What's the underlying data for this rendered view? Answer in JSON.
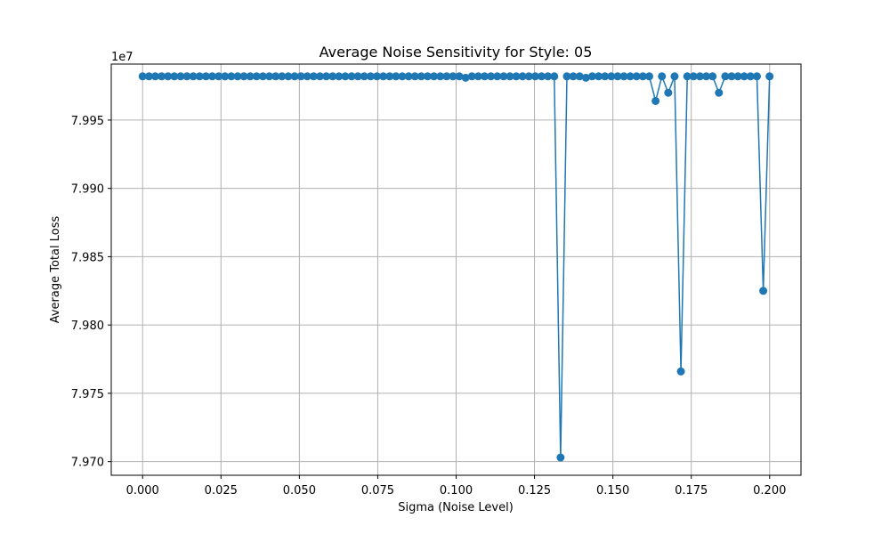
{
  "chart_data": {
    "type": "line",
    "title": "Average Noise Sensitivity for Style: 05",
    "xlabel": "Sigma (Noise Level)",
    "ylabel": "Average Total Loss",
    "y_offset_label": "1e7",
    "y_scale": 10000000,
    "xlim": [
      -0.01,
      0.21
    ],
    "ylim": [
      7.969,
      7.9991
    ],
    "x_ticks": [
      0.0,
      0.025,
      0.05,
      0.075,
      0.1,
      0.125,
      0.15,
      0.175,
      0.2
    ],
    "x_tick_labels": [
      "0.000",
      "0.025",
      "0.050",
      "0.075",
      "0.100",
      "0.125",
      "0.150",
      "0.175",
      "0.200"
    ],
    "y_ticks": [
      7.97,
      7.975,
      7.98,
      7.985,
      7.99,
      7.995
    ],
    "y_tick_labels": [
      "7.970",
      "7.975",
      "7.980",
      "7.985",
      "7.990",
      "7.995"
    ],
    "grid": true,
    "color": "#1f77b4",
    "x_start": 0.0,
    "x_step": 0.00202,
    "values": [
      7.9982,
      7.9982,
      7.9982,
      7.9982,
      7.9982,
      7.9982,
      7.9982,
      7.9982,
      7.9982,
      7.9982,
      7.9982,
      7.9982,
      7.9982,
      7.9982,
      7.9982,
      7.9982,
      7.9982,
      7.9982,
      7.9982,
      7.9982,
      7.9982,
      7.9982,
      7.9982,
      7.9982,
      7.9982,
      7.9982,
      7.9982,
      7.9982,
      7.9982,
      7.9982,
      7.9982,
      7.9982,
      7.9982,
      7.9982,
      7.9982,
      7.9982,
      7.9982,
      7.9982,
      7.9982,
      7.9982,
      7.9982,
      7.9982,
      7.9982,
      7.9982,
      7.9982,
      7.9982,
      7.9982,
      7.9982,
      7.9982,
      7.9982,
      7.9982,
      7.9981,
      7.9982,
      7.9982,
      7.9982,
      7.9982,
      7.9982,
      7.9982,
      7.9982,
      7.9982,
      7.9982,
      7.9982,
      7.9982,
      7.9982,
      7.9982,
      7.9982,
      7.9703,
      7.9982,
      7.9982,
      7.9982,
      7.9981,
      7.9982,
      7.9982,
      7.9982,
      7.9982,
      7.9982,
      7.9982,
      7.9982,
      7.9982,
      7.9982,
      7.9982,
      7.9964,
      7.9982,
      7.997,
      7.9982,
      7.9766,
      7.9982,
      7.9982,
      7.9982,
      7.9982,
      7.9982,
      7.997,
      7.9982,
      7.9982,
      7.9982,
      7.9982,
      7.9982,
      7.9982,
      7.9825,
      7.9982
    ]
  }
}
